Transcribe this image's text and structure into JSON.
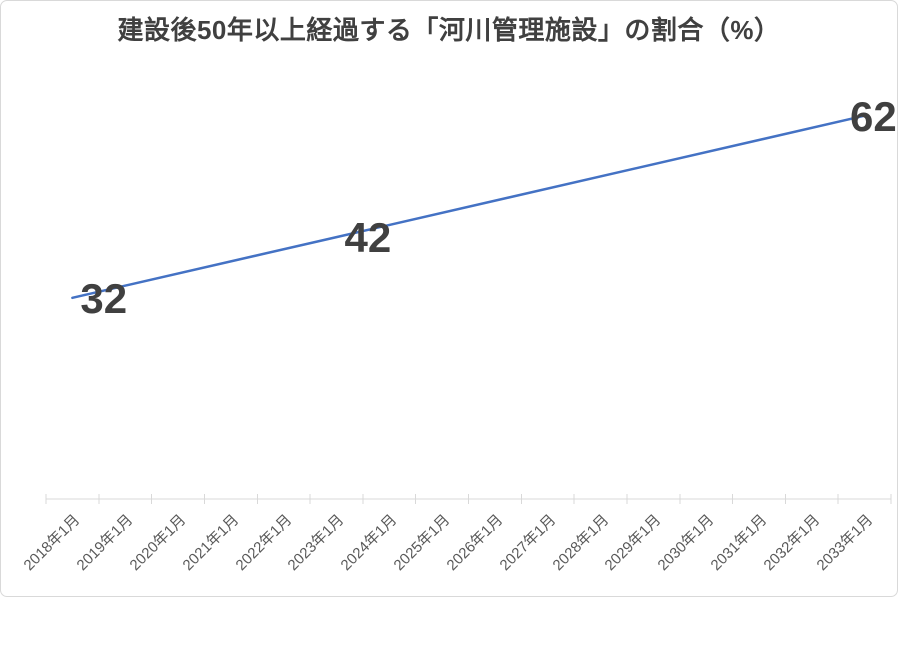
{
  "chart_data": {
    "type": "line",
    "title": "建設後50年以上経過する「河川管理施設」の割合（%）",
    "categories": [
      "2018年1月",
      "2019年1月",
      "2020年1月",
      "2021年1月",
      "2022年1月",
      "2023年1月",
      "2024年1月",
      "2025年1月",
      "2026年1月",
      "2027年1月",
      "2028年1月",
      "2029年1月",
      "2030年1月",
      "2031年1月",
      "2032年1月",
      "2033年1月"
    ],
    "series": [
      {
        "values": [
          32,
          null,
          null,
          null,
          null,
          42,
          null,
          null,
          null,
          null,
          null,
          null,
          null,
          null,
          null,
          62
        ]
      }
    ],
    "labeled_points": [
      {
        "category": "2018年1月",
        "value": 32
      },
      {
        "category": "2023年1月",
        "value": 42
      },
      {
        "category": "2033年1月",
        "value": 62
      }
    ],
    "xlabel": "",
    "ylabel": "",
    "ylim": [
      0,
      70
    ],
    "grid": false,
    "legend": false,
    "x_label_rotation_deg": 45,
    "line_color": "#4472C4",
    "axis_color": "#D9D9D9",
    "title_color": "#404040",
    "data_label_color": "#404040",
    "axis_label_color": "#595959"
  }
}
